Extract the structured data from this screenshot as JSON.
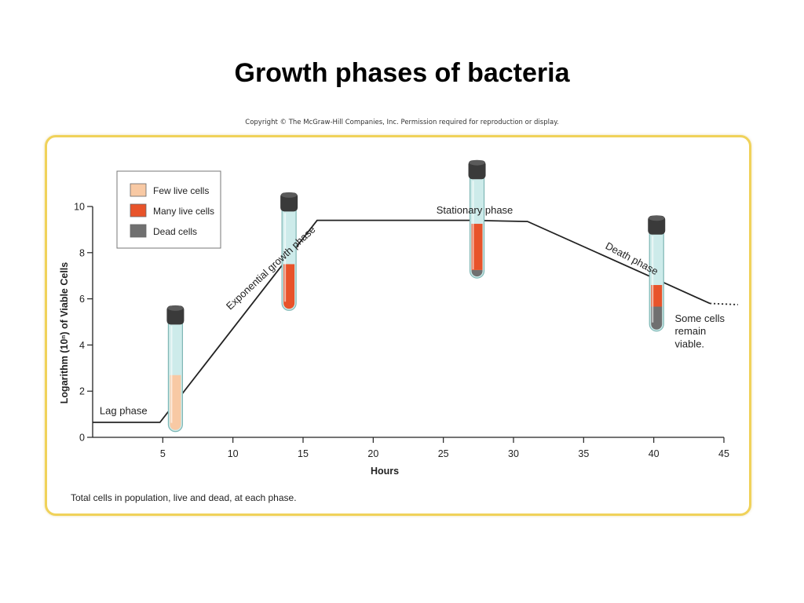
{
  "slide": {
    "title": "Growth phases of bacteria",
    "copyright": "Copyright © The McGraw-Hill Companies, Inc. Permission required for reproduction or display.",
    "caption": "Total cells in population, live and dead, at each phase."
  },
  "legend": {
    "items": [
      {
        "label": "Few live cells",
        "color": "#f8c9a4"
      },
      {
        "label": "Many live cells",
        "color": "#e8532a"
      },
      {
        "label": "Dead cells",
        "color": "#707070"
      }
    ]
  },
  "chart_data": {
    "type": "line",
    "xlabel": "Hours",
    "ylabel": "Logarithm (10ⁿ) of Viable Cells",
    "xlim": [
      0,
      45
    ],
    "ylim": [
      0,
      10
    ],
    "x_ticks": [
      5,
      10,
      15,
      20,
      25,
      30,
      35,
      40,
      45
    ],
    "y_ticks": [
      0,
      2,
      4,
      6,
      8,
      10
    ],
    "grid": false,
    "legend_position": "top-left",
    "series": [
      {
        "x": [
          0,
          4.8,
          14.2,
          16,
          27,
          31,
          40,
          44
        ],
        "y": [
          0.65,
          0.65,
          8.0,
          9.4,
          9.4,
          9.35,
          6.9,
          5.8
        ]
      }
    ],
    "dotted_extension": {
      "x": [
        44,
        46
      ],
      "y": [
        5.8,
        5.75
      ]
    },
    "annotations": [
      {
        "text": "Lag phase",
        "x": 0.5,
        "y": 1.0,
        "rotate": 0
      },
      {
        "text": "Exponential growth phase",
        "x": 9.8,
        "y": 5.5,
        "rotate": -43
      },
      {
        "text": "Stationary phase",
        "x": 24.5,
        "y": 9.7,
        "rotate": 0
      },
      {
        "text": "Death phase",
        "x": 36.5,
        "y": 8.2,
        "rotate": 28
      },
      {
        "text": "Some cells",
        "x": 41.5,
        "y": 5.0,
        "rotate": 0
      },
      {
        "text": "remain",
        "x": 41.5,
        "y": 4.45,
        "rotate": 0
      },
      {
        "text": "viable.",
        "x": 41.5,
        "y": 3.9,
        "rotate": 0
      }
    ],
    "tubes": [
      {
        "x": 5.9,
        "y_top": 5.7,
        "y_bottom": 0.25,
        "few": 0.52,
        "many": 0,
        "dead": 0
      },
      {
        "x": 14.0,
        "y_top": 10.6,
        "y_bottom": 5.5,
        "few": 0,
        "many": 0.46,
        "dead": 0
      },
      {
        "x": 27.4,
        "y_top": 12.0,
        "y_bottom": 6.9,
        "few": 0,
        "many": 0.46,
        "dead": 0.08
      },
      {
        "x": 40.2,
        "y_top": 9.6,
        "y_bottom": 4.6,
        "few": 0,
        "many": 0.22,
        "dead": 0.25
      }
    ]
  }
}
